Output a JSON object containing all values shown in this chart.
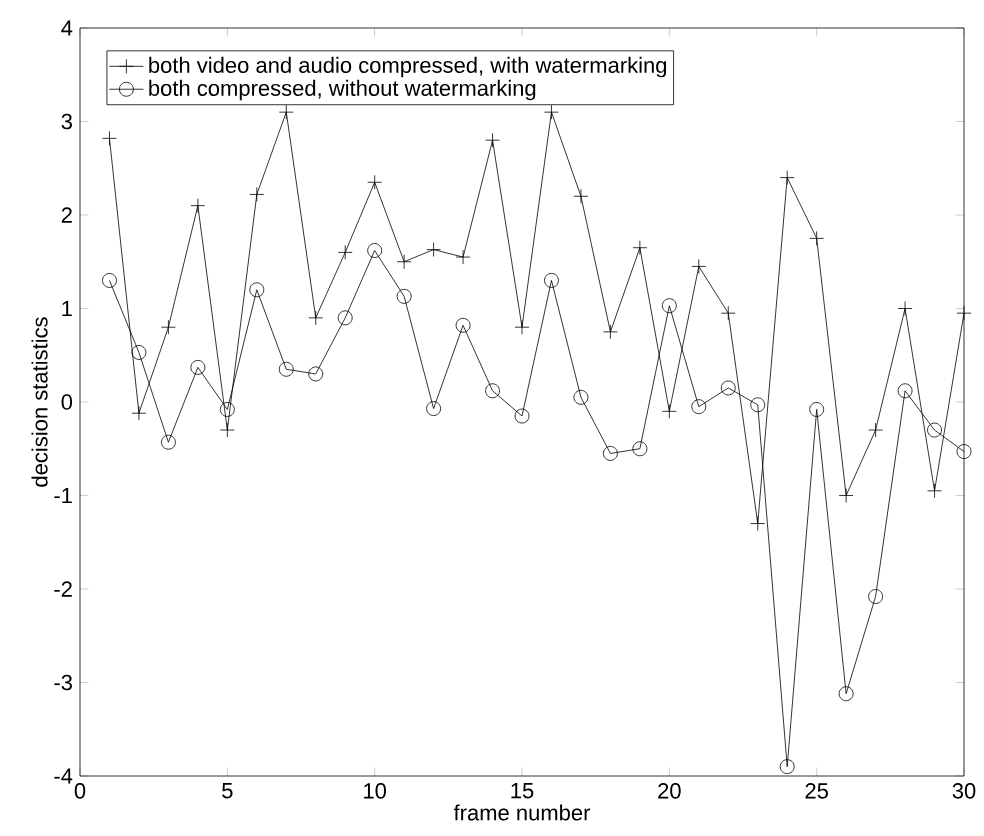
{
  "chart_data": {
    "type": "line",
    "xlabel": "frame number",
    "ylabel": "decision statistics",
    "x": [
      1,
      2,
      3,
      4,
      5,
      6,
      7,
      8,
      9,
      10,
      11,
      12,
      13,
      14,
      15,
      16,
      17,
      18,
      19,
      20,
      21,
      22,
      23,
      24,
      25,
      26,
      27,
      28,
      29,
      30
    ],
    "series": [
      {
        "name": "both video and audio compressed, with watermarking",
        "color": "#000000",
        "marker": "cross",
        "values": [
          2.82,
          -0.12,
          0.8,
          2.1,
          -0.3,
          2.22,
          3.1,
          0.9,
          1.6,
          2.35,
          1.5,
          1.63,
          1.55,
          2.8,
          0.8,
          3.1,
          2.2,
          0.75,
          1.65,
          -0.1,
          1.45,
          0.95,
          -1.3,
          2.4,
          1.75,
          -1.0,
          -0.3,
          1.0,
          -0.95,
          0.95
        ]
      },
      {
        "name": "both compressed, without watermarking",
        "color": "#000000",
        "marker": "circle",
        "values": [
          1.3,
          0.53,
          -0.43,
          0.37,
          -0.08,
          1.2,
          0.35,
          0.3,
          0.9,
          1.62,
          1.13,
          -0.07,
          0.82,
          0.12,
          -0.15,
          1.3,
          0.05,
          -0.55,
          -0.5,
          1.03,
          -0.05,
          0.15,
          -0.03,
          -3.9,
          -0.08,
          -3.12,
          -2.08,
          0.12,
          -0.3,
          -0.53
        ]
      }
    ],
    "xlim": [
      0,
      30
    ],
    "ylim": [
      -4,
      4
    ],
    "xticks": [
      0,
      5,
      10,
      15,
      20,
      25,
      30
    ],
    "yticks": [
      -4,
      -3,
      -2,
      -1,
      0,
      1,
      2,
      3,
      4
    ],
    "grid": false,
    "legend": "top left",
    "line_style": "solid"
  }
}
